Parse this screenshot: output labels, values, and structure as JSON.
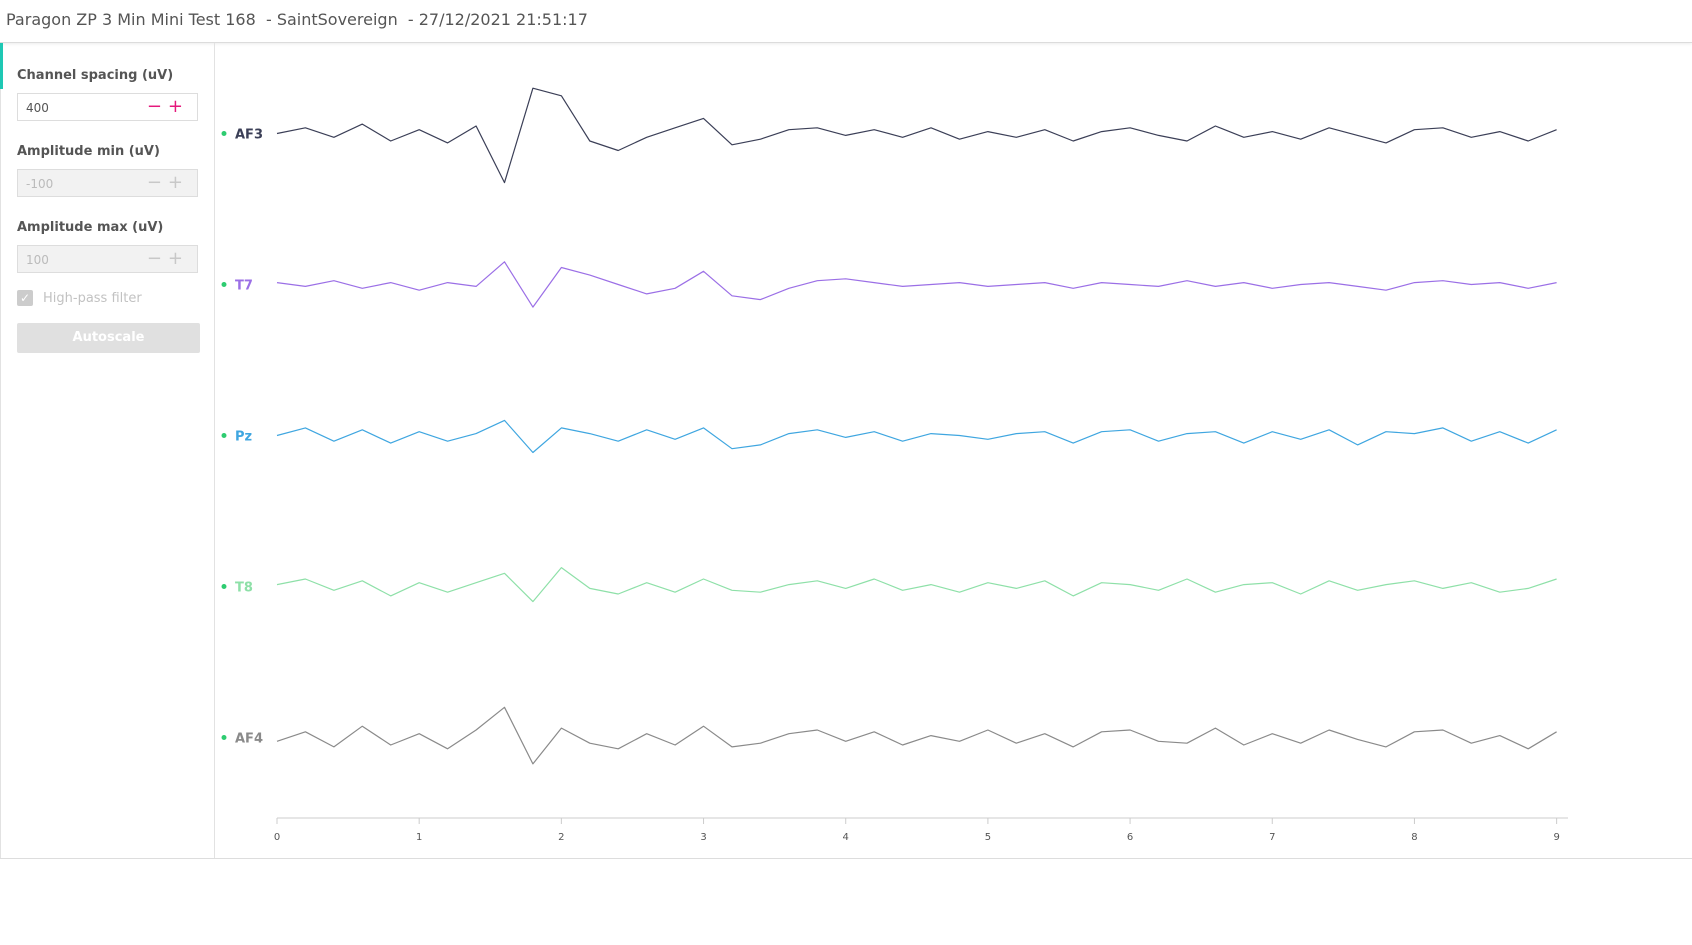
{
  "header": {
    "title": "Paragon ZP 3 Min Mini Test 168  - SaintSovereign  - 27/12/2021 21:51:17"
  },
  "sidebar": {
    "channel_spacing": {
      "label": "Channel spacing (uV)",
      "value": 400
    },
    "amplitude_min": {
      "label": "Amplitude min (uV)",
      "value": -100
    },
    "amplitude_max": {
      "label": "Amplitude max (uV)",
      "value": 100
    },
    "high_pass": {
      "label": "High-pass filter",
      "checked": true
    },
    "button": "Autoscale"
  },
  "chart_data": {
    "type": "line",
    "x": [
      0,
      0.2,
      0.4,
      0.6,
      0.8,
      1,
      1.2,
      1.4,
      1.6,
      1.8,
      2,
      2.2,
      2.4,
      2.6,
      2.8,
      3,
      3.2,
      3.4,
      3.6,
      3.8,
      4,
      4.2,
      4.4,
      4.6,
      4.8,
      5,
      5.2,
      5.4,
      5.6,
      5.8,
      6,
      6.2,
      6.4,
      6.6,
      6.8,
      7,
      7.2,
      7.4,
      7.6,
      7.8,
      8,
      8.2,
      8.4,
      8.6,
      8.8,
      9
    ],
    "xlim": [
      0,
      9.08
    ],
    "xticks": [
      0,
      1,
      2,
      3,
      4,
      5,
      6,
      7,
      8,
      9
    ],
    "series": [
      {
        "name": "AF3",
        "color": "#3b3f57",
        "values": [
          0,
          15,
          -10,
          25,
          -20,
          10,
          -25,
          20,
          -130,
          120,
          100,
          -20,
          -45,
          -10,
          15,
          40,
          -30,
          -15,
          10,
          15,
          -5,
          10,
          -10,
          15,
          -15,
          5,
          -10,
          10,
          -20,
          5,
          15,
          -5,
          -20,
          20,
          -10,
          5,
          -15,
          15,
          -5,
          -25,
          10,
          15,
          -10,
          5,
          -20,
          10
        ]
      },
      {
        "name": "T7",
        "color": "#9b6fe6",
        "values": [
          5,
          -5,
          10,
          -10,
          5,
          -15,
          5,
          -5,
          60,
          -60,
          45,
          25,
          0,
          -25,
          -10,
          35,
          -30,
          -40,
          -10,
          10,
          15,
          5,
          -5,
          0,
          5,
          -5,
          0,
          5,
          -10,
          5,
          0,
          -5,
          10,
          -5,
          5,
          -10,
          0,
          5,
          -5,
          -15,
          5,
          10,
          0,
          5,
          -10,
          5
        ]
      },
      {
        "name": "Pz",
        "color": "#3fa6e0",
        "values": [
          0,
          20,
          -15,
          15,
          -20,
          10,
          -15,
          5,
          40,
          -45,
          20,
          5,
          -15,
          15,
          -10,
          20,
          -35,
          -25,
          5,
          15,
          -5,
          10,
          -15,
          5,
          0,
          -10,
          5,
          10,
          -20,
          10,
          15,
          -15,
          5,
          10,
          -20,
          10,
          -10,
          15,
          -25,
          10,
          5,
          20,
          -15,
          10,
          -20,
          15
        ]
      },
      {
        "name": "T8",
        "color": "#8ee0a8",
        "values": [
          5,
          20,
          -10,
          15,
          -25,
          10,
          -15,
          10,
          35,
          -40,
          50,
          -5,
          -20,
          10,
          -15,
          20,
          -10,
          -15,
          5,
          15,
          -5,
          20,
          -10,
          5,
          -15,
          10,
          -5,
          15,
          -25,
          10,
          5,
          -10,
          20,
          -15,
          5,
          10,
          -20,
          15,
          -10,
          5,
          15,
          -5,
          10,
          -15,
          -5,
          20
        ]
      },
      {
        "name": "AF4",
        "color": "#8a8a8a",
        "values": [
          -10,
          15,
          -25,
          30,
          -20,
          10,
          -30,
          20,
          80,
          -70,
          25,
          -15,
          -30,
          10,
          -20,
          30,
          -25,
          -15,
          10,
          20,
          -10,
          15,
          -20,
          5,
          -10,
          20,
          -15,
          10,
          -25,
          15,
          20,
          -10,
          -15,
          25,
          -20,
          10,
          -15,
          20,
          -5,
          -25,
          15,
          20,
          -15,
          5,
          -30,
          15
        ]
      }
    ]
  }
}
